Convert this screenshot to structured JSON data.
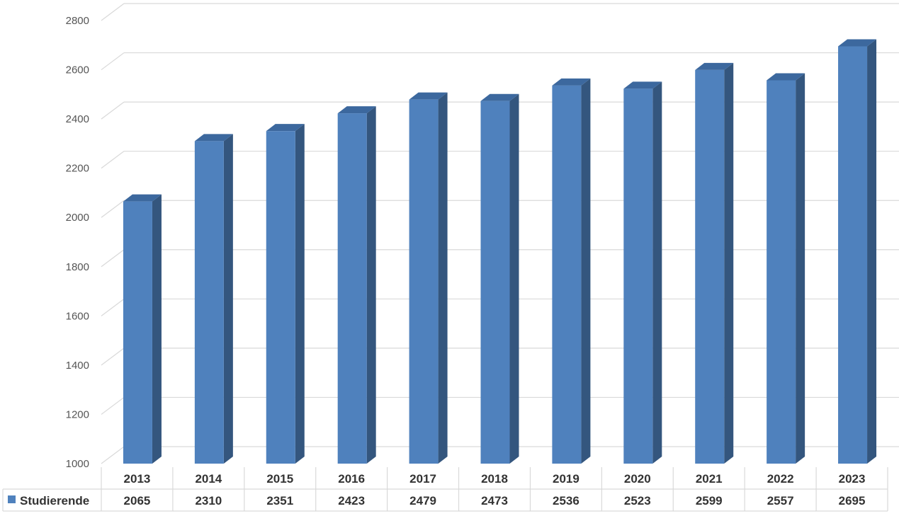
{
  "chart_data": {
    "type": "bar",
    "style": "3d-clustered-column-with-data-table",
    "categories": [
      "2013",
      "2014",
      "2015",
      "2016",
      "2017",
      "2018",
      "2019",
      "2020",
      "2021",
      "2022",
      "2023"
    ],
    "series": [
      {
        "name": "Studierende",
        "values": [
          2065,
          2310,
          2351,
          2423,
          2479,
          2473,
          2536,
          2523,
          2599,
          2557,
          2695
        ],
        "color": "#4f81bd",
        "side_color": "#34567e",
        "top_color": "#3c689e"
      }
    ],
    "ylim": [
      1000,
      2800
    ],
    "yticks": [
      "1000",
      "1200",
      "1400",
      "1600",
      "1800",
      "2000",
      "2200",
      "2400",
      "2600",
      "2800"
    ],
    "title": "",
    "xlabel": "",
    "ylabel": "",
    "grid": true,
    "legend": "in data table (left)",
    "data_table": true
  }
}
